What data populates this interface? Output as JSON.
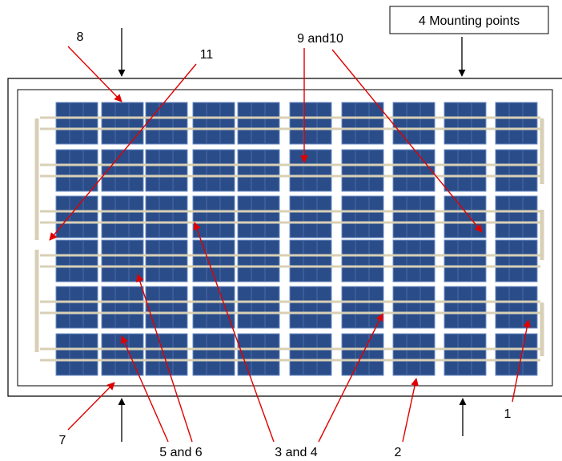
{
  "labels": {
    "top_left": "8",
    "top_center": "11",
    "top_right": "9 and10",
    "mounting": "4 Mounting points",
    "bottom_right": "1",
    "bottom_2": "2",
    "bottom_3": "3 and 4",
    "bottom_5": "5 and 6",
    "bottom_7": "7"
  }
}
